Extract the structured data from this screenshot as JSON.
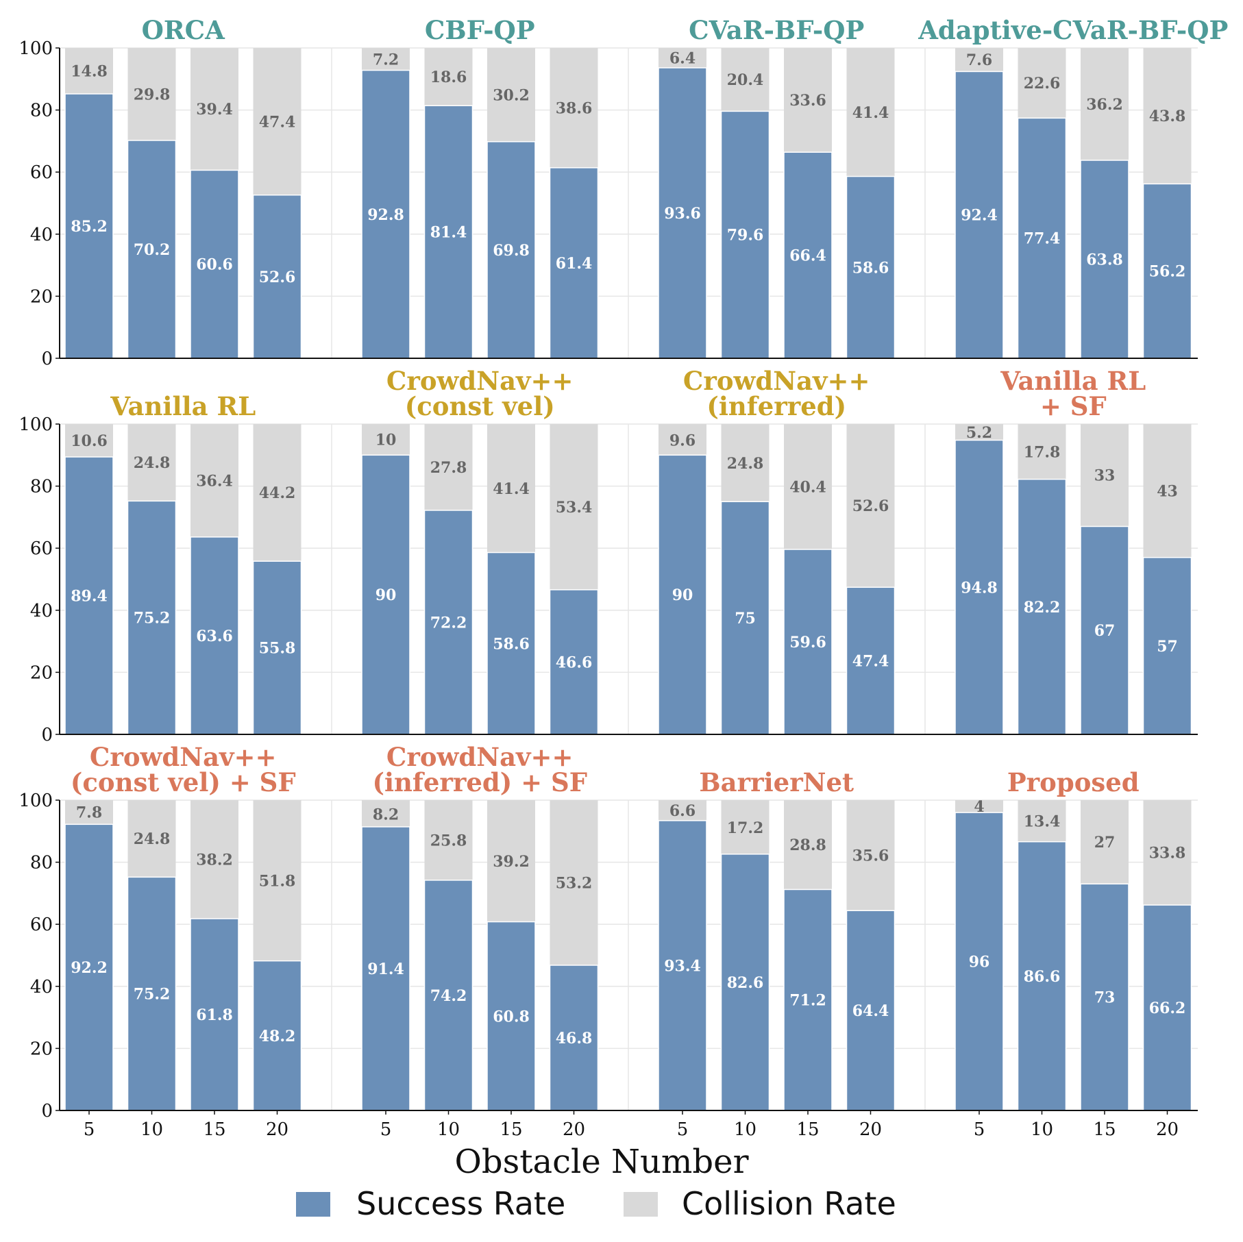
{
  "chart_data": {
    "type": "bar",
    "stacked": true,
    "xlabel": "Obstacle Number",
    "ylim": [
      0,
      100
    ],
    "yticks": [
      "0",
      "20",
      "40",
      "60",
      "80",
      "100"
    ],
    "grid": true,
    "legend_position": "bottom-center",
    "series": [
      {
        "name": "Success Rate",
        "color": "#6a8fb8"
      },
      {
        "name": "Collision Rate",
        "color": "#d9d9d9"
      }
    ],
    "rows": [
      {
        "x": [
          "5",
          "10",
          "15",
          "20"
        ],
        "groups": [
          {
            "title": [
              "ORCA"
            ],
            "title_color": "#4e9b98",
            "success": [
              85.2,
              70.2,
              60.6,
              52.6
            ],
            "collision": [
              14.8,
              29.8,
              39.4,
              47.4
            ]
          },
          {
            "title": [
              "CBF-QP"
            ],
            "title_color": "#4e9b98",
            "success": [
              92.8,
              81.4,
              69.8,
              61.4
            ],
            "collision": [
              7.2,
              18.6,
              30.2,
              38.6
            ]
          },
          {
            "title": [
              "CVaR-BF-QP"
            ],
            "title_color": "#4e9b98",
            "success": [
              93.6,
              79.6,
              66.4,
              58.6
            ],
            "collision": [
              6.4,
              20.4,
              33.6,
              41.4
            ]
          },
          {
            "title": [
              "Adaptive-CVaR-BF-QP"
            ],
            "title_color": "#4e9b98",
            "success": [
              92.4,
              77.4,
              63.8,
              56.2
            ],
            "collision": [
              7.6,
              22.6,
              36.2,
              43.8
            ]
          }
        ]
      },
      {
        "x": [
          "5",
          "10",
          "15",
          "20"
        ],
        "groups": [
          {
            "title": [
              "Vanilla RL"
            ],
            "title_color": "#c9a227",
            "success": [
              89.4,
              75.2,
              63.6,
              55.8
            ],
            "collision": [
              10.6,
              24.8,
              36.4,
              44.2
            ]
          },
          {
            "title": [
              "CrowdNav++",
              "(const vel)"
            ],
            "title_color": "#c9a227",
            "success": [
              90,
              72.2,
              58.6,
              46.6
            ],
            "collision": [
              10,
              27.8,
              41.4,
              53.4
            ]
          },
          {
            "title": [
              "CrowdNav++",
              "(inferred)"
            ],
            "title_color": "#c9a227",
            "success": [
              90,
              75,
              59.6,
              47.4
            ],
            "collision": [
              9.6,
              24.8,
              40.4,
              52.6
            ]
          },
          {
            "title": [
              "Vanilla RL",
              "+ SF"
            ],
            "title_color": "#d9775a",
            "success": [
              94.8,
              82.2,
              67,
              57
            ],
            "collision": [
              5.2,
              17.8,
              33,
              43
            ]
          }
        ]
      },
      {
        "x": [
          "5",
          "10",
          "15",
          "20"
        ],
        "groups": [
          {
            "title": [
              "CrowdNav++",
              "(const vel) + SF"
            ],
            "title_color": "#d9775a",
            "success": [
              92.2,
              75.2,
              61.8,
              48.2
            ],
            "collision": [
              7.8,
              24.8,
              38.2,
              51.8
            ]
          },
          {
            "title": [
              "CrowdNav++",
              "(inferred) + SF"
            ],
            "title_color": "#d9775a",
            "success": [
              91.4,
              74.2,
              60.8,
              46.8
            ],
            "collision": [
              8.2,
              25.8,
              39.2,
              53.2
            ]
          },
          {
            "title": [
              "BarrierNet"
            ],
            "title_color": "#d9775a",
            "success": [
              93.4,
              82.6,
              71.2,
              64.4
            ],
            "collision": [
              6.6,
              17.2,
              28.8,
              35.6
            ]
          },
          {
            "title": [
              "Proposed"
            ],
            "title_color": "#d9775a",
            "success": [
              96,
              86.6,
              73,
              66.2
            ],
            "collision": [
              4,
              13.4,
              27,
              33.8
            ]
          }
        ]
      }
    ]
  }
}
